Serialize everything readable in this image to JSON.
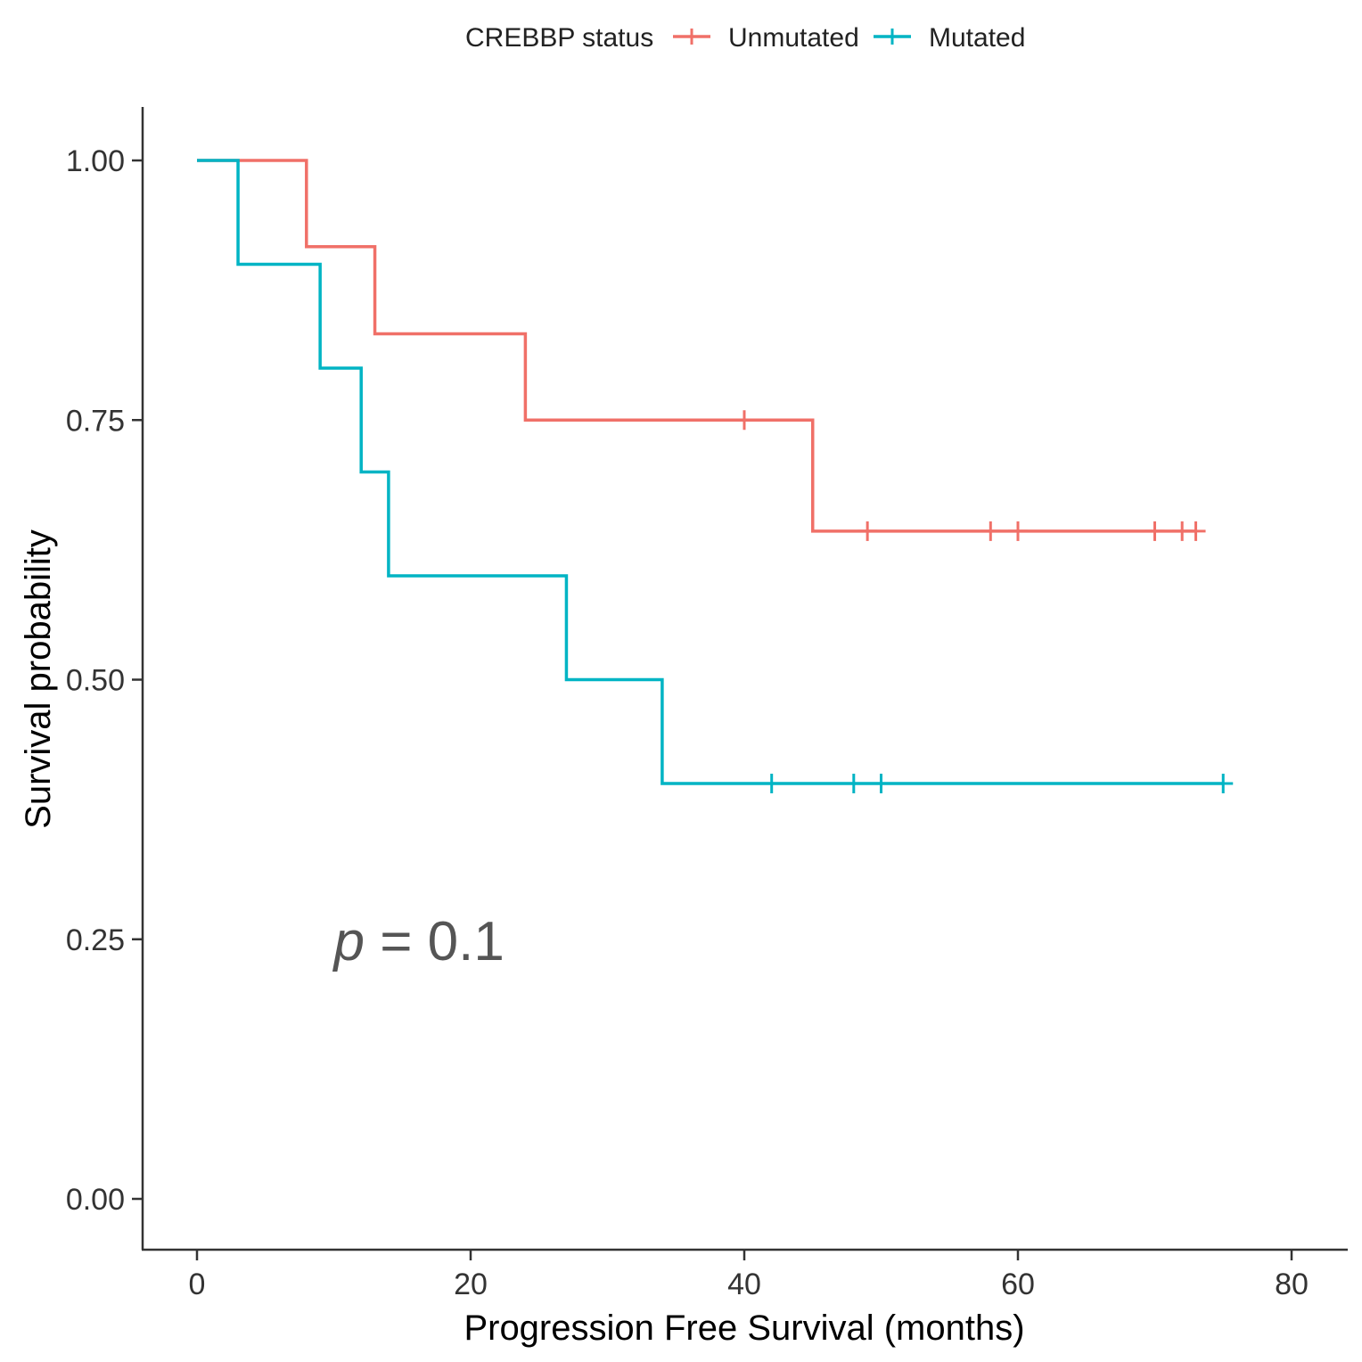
{
  "chart_data": {
    "type": "line",
    "subtype": "kaplan-meier",
    "xlabel": "Progression Free Survival (months)",
    "ylabel": "Survival probability",
    "xlim": [
      -4,
      84
    ],
    "ylim": [
      -0.05,
      1.05
    ],
    "x_ticks": [
      0,
      20,
      40,
      60,
      80
    ],
    "x_tick_labels": [
      "0",
      "20",
      "40",
      "60",
      "80"
    ],
    "y_ticks": [
      0,
      0.25,
      0.5,
      0.75,
      1.0
    ],
    "y_tick_labels": [
      "0.00",
      "0.25",
      "0.50",
      "0.75",
      "1.00"
    ],
    "grid": false,
    "legend": {
      "title": "CREBBP status",
      "placement": "top",
      "entries": [
        "Unmutated",
        "Mutated"
      ]
    },
    "annotation": {
      "p_symbol": "p",
      "p_rest": " = 0.1",
      "x": 10,
      "y": 0.23
    },
    "series": [
      {
        "name": "Unmutated",
        "color": "#f07068",
        "steps": [
          [
            0,
            1.0
          ],
          [
            8,
            0.917
          ],
          [
            13,
            0.833
          ],
          [
            24,
            0.75
          ],
          [
            45,
            0.643
          ]
        ],
        "end_x": 73,
        "censor_x": [
          40,
          49,
          58,
          60,
          70,
          72,
          73
        ]
      },
      {
        "name": "Mutated",
        "color": "#00b4c4",
        "steps": [
          [
            0,
            1.0
          ],
          [
            3,
            0.9
          ],
          [
            9,
            0.8
          ],
          [
            12,
            0.7
          ],
          [
            14,
            0.6
          ],
          [
            27,
            0.5
          ],
          [
            34,
            0.4
          ]
        ],
        "end_x": 75,
        "censor_x": [
          42,
          48,
          50,
          75
        ]
      }
    ]
  }
}
